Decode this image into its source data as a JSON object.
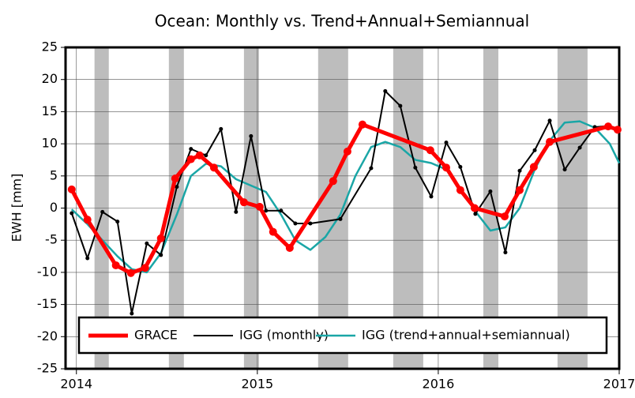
{
  "chart_data": {
    "type": "line",
    "title": "Ocean: Monthly vs. Trend+Annual+Semiannual",
    "y_label": "EWH [mm]",
    "xlim": [
      2013.94,
      2017.0
    ],
    "xticks": [
      2014,
      2015,
      2016,
      2017
    ],
    "ylim": [
      -25,
      25
    ],
    "yticks": [
      -25,
      -20,
      -15,
      -10,
      -5,
      0,
      5,
      10,
      15,
      20,
      25
    ],
    "grid": true,
    "shaded": [
      [
        2014.1,
        2014.179
      ],
      [
        2014.511,
        2014.594
      ],
      [
        2014.926,
        2015.009
      ],
      [
        2015.336,
        2015.502
      ],
      [
        2015.751,
        2015.917
      ],
      [
        2016.249,
        2016.332
      ],
      [
        2016.659,
        2016.825
      ]
    ],
    "series": [
      {
        "name": "GRACE",
        "color": "#ff0000",
        "x": [
          2013.974,
          2014.061,
          2014.218,
          2014.301,
          2014.38,
          2014.467,
          2014.546,
          2014.633,
          2014.681,
          2014.76,
          2014.926,
          2015.013,
          2015.087,
          2015.179,
          2015.419,
          2015.498,
          2015.581,
          2015.956,
          2016.044,
          2016.122,
          2016.201,
          2016.367,
          2016.45,
          2016.528,
          2016.616,
          2016.939,
          2016.991
        ],
        "values": [
          2.9,
          -1.8,
          -8.9,
          -10.1,
          -9.3,
          -4.7,
          4.6,
          7.6,
          8.2,
          6.3,
          0.9,
          0.2,
          -3.7,
          -6.2,
          4.2,
          8.8,
          13.0,
          9.0,
          6.3,
          2.8,
          0,
          -1.3,
          2.8,
          6.4,
          10.3,
          12.7,
          12.2
        ]
      },
      {
        "name": "IGG (monthly)",
        "color": "#000000",
        "x": [
          2013.974,
          2014.061,
          2014.144,
          2014.227,
          2014.306,
          2014.389,
          2014.467,
          2014.555,
          2014.633,
          2014.716,
          2014.799,
          2014.882,
          2014.965,
          2015.048,
          2015.131,
          2015.21,
          2015.293,
          2015.459,
          2015.629,
          2015.707,
          2015.79,
          2015.873,
          2015.961,
          2016.044,
          2016.122,
          2016.205,
          2016.288,
          2016.371,
          2016.45,
          2016.533,
          2016.616,
          2016.699,
          2016.782,
          2016.865,
          2016.948
        ],
        "values": [
          -0.8,
          -7.8,
          -0.6,
          -2.1,
          -16.4,
          -5.5,
          -7.3,
          3.3,
          9.2,
          8.2,
          12.3,
          -0.6,
          11.2,
          -0.4,
          -0.4,
          -2.4,
          -2.4,
          -1.7,
          6.2,
          18.2,
          15.9,
          6.3,
          1.8,
          10.2,
          6.4,
          -0.9,
          2.6,
          -6.9,
          5.8,
          9.0,
          13.6,
          6.0,
          9.4,
          12.6,
          12.8
        ]
      },
      {
        "name": "IGG (trend+annual+semiannual)",
        "color": "#1aa6a6",
        "x": [
          2013.974,
          2014.061,
          2014.144,
          2014.227,
          2014.306,
          2014.389,
          2014.467,
          2014.555,
          2014.633,
          2014.716,
          2014.799,
          2014.882,
          2014.965,
          2015.048,
          2015.131,
          2015.21,
          2015.293,
          2015.376,
          2015.459,
          2015.542,
          2015.629,
          2015.707,
          2015.79,
          2015.873,
          2015.961,
          2016.044,
          2016.122,
          2016.205,
          2016.288,
          2016.371,
          2016.45,
          2016.533,
          2016.616,
          2016.699,
          2016.782,
          2016.865,
          2016.948,
          2017.0
        ],
        "values": [
          -0.2,
          -2.5,
          -5,
          -7.5,
          -9.5,
          -10,
          -7,
          -1,
          5,
          6.9,
          6.5,
          4.5,
          3.5,
          2.5,
          -1,
          -5,
          -6.5,
          -4.5,
          -1,
          5,
          9.5,
          10.3,
          9.5,
          7.5,
          7,
          6,
          3,
          -0.5,
          -3.5,
          -3,
          0,
          6,
          10.5,
          13.3,
          13.5,
          12.5,
          10,
          7
        ]
      }
    ]
  }
}
